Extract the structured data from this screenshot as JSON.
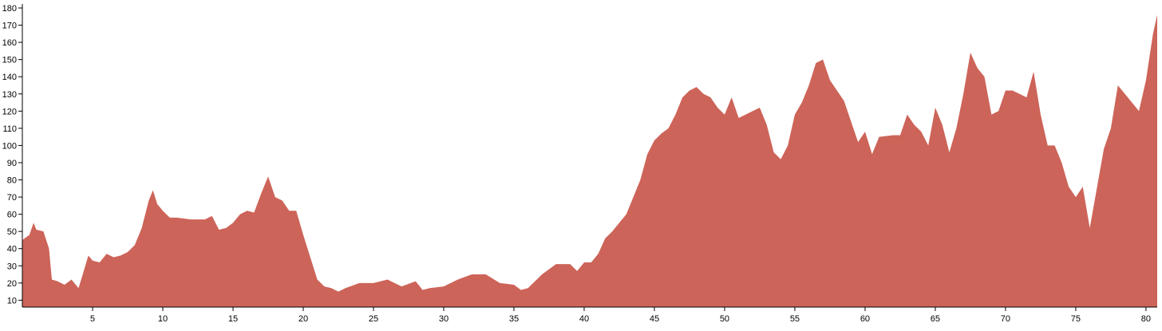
{
  "chart_data": {
    "type": "area",
    "color": "#cd6459",
    "x": [
      0,
      0.5,
      0.8,
      1,
      1.5,
      1.9,
      2.1,
      2.5,
      3,
      3.5,
      4,
      4.3,
      4.7,
      5,
      5.5,
      6,
      6.5,
      7,
      7.5,
      8,
      8.5,
      9,
      9.3,
      9.6,
      10,
      10.5,
      11,
      12,
      13,
      13.5,
      14,
      14.5,
      15,
      15.5,
      16,
      16.5,
      17,
      17.5,
      18,
      18.5,
      19,
      19.5,
      20,
      20.5,
      21,
      21.5,
      22,
      22.5,
      23,
      24,
      25,
      26,
      27,
      28,
      28.5,
      29,
      30,
      31,
      32,
      33,
      34,
      35,
      35.5,
      36,
      37,
      38,
      39,
      39.5,
      40,
      40.5,
      41,
      41.5,
      42,
      43,
      44,
      44.5,
      45,
      45.5,
      46,
      46.5,
      47,
      47.5,
      48,
      48.5,
      49,
      49.5,
      50,
      50.5,
      51,
      51.5,
      52,
      52.5,
      53,
      53.5,
      54,
      54.5,
      55,
      55.5,
      56,
      56.5,
      57,
      57.5,
      58,
      58.5,
      59,
      59.5,
      60,
      60.5,
      61,
      62,
      62.5,
      63,
      63.5,
      64,
      64.5,
      65,
      65.5,
      66,
      66.5,
      67,
      67.5,
      68,
      68.5,
      69,
      69.5,
      70,
      70.5,
      71,
      71.5,
      72,
      72.5,
      73,
      73.5,
      74,
      74.5,
      75,
      75.5,
      76,
      76.5,
      77,
      77.5,
      78,
      78.5,
      79,
      79.5,
      80,
      80.5,
      80.8
    ],
    "values": [
      45,
      48,
      55,
      51,
      50,
      40,
      22,
      21,
      19,
      22,
      17,
      25,
      36,
      33,
      32,
      37,
      35,
      36,
      38,
      42,
      52,
      68,
      74,
      66,
      62,
      58,
      58,
      57,
      57,
      59,
      51,
      52,
      55,
      60,
      62,
      61,
      72,
      82,
      70,
      68,
      62,
      62,
      48,
      35,
      22,
      18,
      17,
      15,
      17,
      20,
      20,
      22,
      18,
      21,
      16,
      17,
      18,
      22,
      25,
      25,
      20,
      19,
      16,
      17,
      25,
      31,
      31,
      27,
      32,
      32,
      37,
      46,
      50,
      60,
      80,
      95,
      103,
      107,
      110,
      118,
      128,
      132,
      134,
      130,
      128,
      122,
      118,
      128,
      116,
      118,
      120,
      122,
      112,
      96,
      92,
      100,
      118,
      125,
      135,
      148,
      150,
      138,
      132,
      126,
      114,
      102,
      108,
      95,
      105,
      106,
      106,
      118,
      112,
      108,
      100,
      122,
      112,
      96,
      110,
      130,
      154,
      145,
      140,
      118,
      120,
      132,
      132,
      130,
      128,
      143,
      118,
      100,
      100,
      90,
      76,
      70,
      76,
      52,
      75,
      98,
      110,
      135,
      130,
      125,
      120,
      138,
      165,
      176
    ],
    "xlim": [
      0,
      80.8
    ],
    "xticks": [
      5,
      10,
      15,
      20,
      25,
      30,
      35,
      40,
      45,
      50,
      55,
      60,
      65,
      70,
      75,
      80
    ],
    "ylim": [
      6,
      180
    ],
    "yticks": [
      10,
      20,
      30,
      40,
      50,
      60,
      70,
      80,
      90,
      100,
      110,
      120,
      130,
      140,
      150,
      160,
      170,
      180
    ]
  }
}
